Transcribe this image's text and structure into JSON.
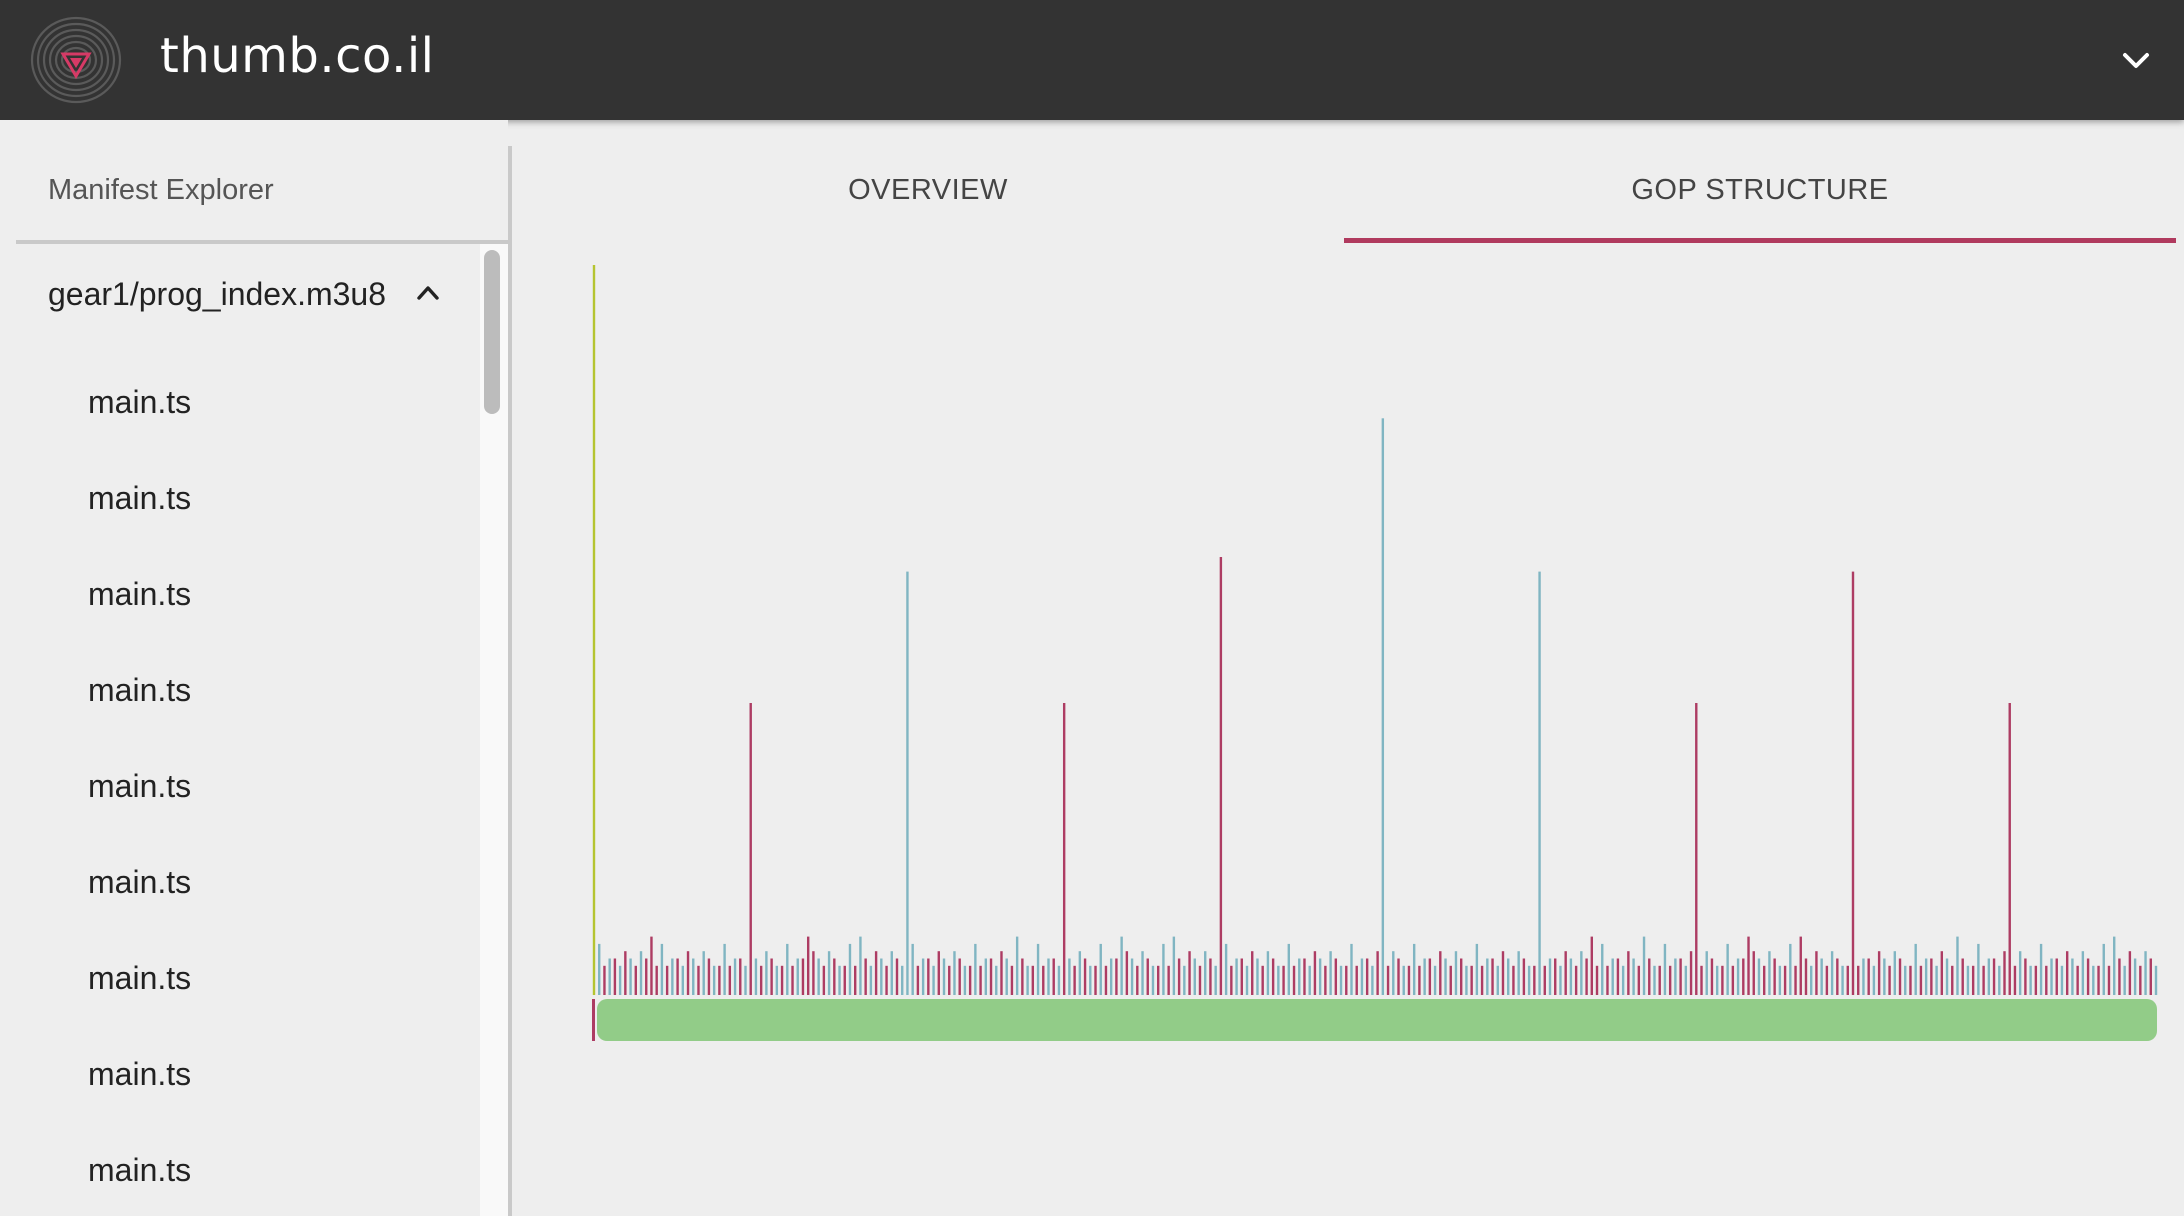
{
  "header": {
    "title": "thumb.co.il"
  },
  "colors": {
    "header_bg": "#333333",
    "accent": "#b03a5e",
    "i_frame": "#b5c430",
    "p_frame": "#ad3c63",
    "b_frame": "#80b5c2",
    "timeline": "#92cc88"
  },
  "sidebar": {
    "title": "Manifest Explorer",
    "root": {
      "label": "gear1/prog_index.m3u8",
      "icon": "chevron-up-icon"
    },
    "items": [
      {
        "label": "main.ts"
      },
      {
        "label": "main.ts"
      },
      {
        "label": "main.ts"
      },
      {
        "label": "main.ts"
      },
      {
        "label": "main.ts"
      },
      {
        "label": "main.ts"
      },
      {
        "label": "main.ts"
      },
      {
        "label": "main.ts"
      },
      {
        "label": "main.ts"
      }
    ]
  },
  "tabs": [
    {
      "label": "OVERVIEW",
      "selected": false
    },
    {
      "label": "GOP STRUCTURE",
      "selected": true
    }
  ],
  "chart_data": {
    "type": "bar",
    "title": "",
    "xlabel": "",
    "ylabel": "",
    "ylim": [
      0,
      100
    ],
    "frame_count": 300,
    "default_pattern": [
      {
        "t": "P",
        "v": 4
      },
      {
        "t": "B",
        "v": 7
      },
      {
        "t": "P",
        "v": 4
      },
      {
        "t": "B",
        "v": 5
      },
      {
        "t": "P",
        "v": 5
      },
      {
        "t": "B",
        "v": 4
      },
      {
        "t": "P",
        "v": 6
      },
      {
        "t": "B",
        "v": 5
      },
      {
        "t": "P",
        "v": 4
      },
      {
        "t": "B",
        "v": 6
      },
      {
        "t": "P",
        "v": 5
      },
      {
        "t": "B",
        "v": 4
      }
    ],
    "peaks": [
      {
        "index": 0,
        "t": "I",
        "v": 100
      },
      {
        "index": 30,
        "t": "P",
        "v": 40
      },
      {
        "index": 60,
        "t": "B",
        "v": 58
      },
      {
        "index": 90,
        "t": "P",
        "v": 40
      },
      {
        "index": 120,
        "t": "P",
        "v": 60
      },
      {
        "index": 151,
        "t": "B",
        "v": 79
      },
      {
        "index": 181,
        "t": "B",
        "v": 58
      },
      {
        "index": 211,
        "t": "P",
        "v": 40
      },
      {
        "index": 241,
        "t": "P",
        "v": 58
      },
      {
        "index": 271,
        "t": "P",
        "v": 40
      }
    ],
    "bumps": [
      {
        "index": 11,
        "t": "P",
        "v": 8
      },
      {
        "index": 41,
        "t": "P",
        "v": 8
      },
      {
        "index": 51,
        "t": "B",
        "v": 8
      },
      {
        "index": 81,
        "t": "B",
        "v": 8
      },
      {
        "index": 101,
        "t": "B",
        "v": 8
      },
      {
        "index": 111,
        "t": "B",
        "v": 8
      },
      {
        "index": 191,
        "t": "P",
        "v": 8
      },
      {
        "index": 201,
        "t": "B",
        "v": 8
      },
      {
        "index": 221,
        "t": "P",
        "v": 8
      },
      {
        "index": 231,
        "t": "P",
        "v": 8
      },
      {
        "index": 261,
        "t": "B",
        "v": 8
      },
      {
        "index": 291,
        "t": "B",
        "v": 8
      }
    ]
  }
}
